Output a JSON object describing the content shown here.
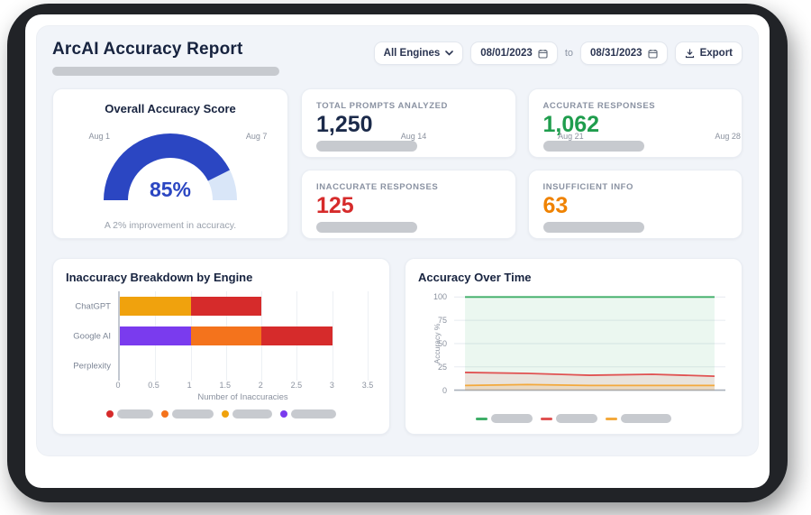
{
  "header": {
    "title": "ArcAI Accuracy Report",
    "engine_filter": "All Engines",
    "date_from": "08/01/2023",
    "to_label": "to",
    "date_to": "08/31/2023",
    "export_label": "Export"
  },
  "gauge": {
    "title": "Overall Accuracy Score",
    "percent": 85,
    "value_label": "85%",
    "caption": "A 2% improvement in accuracy.",
    "color": "#2b46c2",
    "track_color": "#d9e6f8"
  },
  "stats": [
    {
      "label": "TOTAL PROMPTS ANALYZED",
      "value": "1,250",
      "color": "#1b2a4a"
    },
    {
      "label": "ACCURATE RESPONSES",
      "value": "1,062",
      "color": "#1f9d4d"
    },
    {
      "label": "INACCURATE RESPONSES",
      "value": "125",
      "color": "#d62b2b"
    },
    {
      "label": "INSUFFICIENT INFO",
      "value": "63",
      "color": "#ef8200"
    }
  ],
  "chart_data": [
    {
      "type": "bar",
      "orientation": "horizontal",
      "title": "Inaccuracy Breakdown by Engine",
      "xlabel": "Number of Inaccuracies",
      "categories": [
        "ChatGPT",
        "Google AI",
        "Perplexity"
      ],
      "xlim": [
        0,
        3.5
      ],
      "xticks": [
        0,
        0.5,
        1,
        1.5,
        2,
        2.5,
        3,
        3.5
      ],
      "grid": true,
      "series": [
        {
          "name": "purple",
          "color": "#7a3bee",
          "values": [
            0,
            1,
            0
          ]
        },
        {
          "name": "orange",
          "color": "#f4731c",
          "values": [
            0,
            1,
            0
          ]
        },
        {
          "name": "amber",
          "color": "#f0a20d",
          "values": [
            1,
            0,
            0
          ]
        },
        {
          "name": "red",
          "color": "#d62b2b",
          "values": [
            1,
            1,
            0
          ]
        }
      ],
      "legend": {
        "position": "bottom",
        "labels_redacted": true,
        "items": [
          {
            "color": "#d62b2b",
            "pill_w": 40
          },
          {
            "color": "#f4731c",
            "pill_w": 46
          },
          {
            "color": "#f0a20d",
            "pill_w": 44
          },
          {
            "color": "#7a3bee",
            "pill_w": 50
          }
        ]
      }
    },
    {
      "type": "line",
      "title": "Accuracy Over Time",
      "ylabel": "Accuracy %",
      "x": [
        "Aug 1",
        "Aug 7",
        "Aug 14",
        "Aug 21",
        "Aug 28"
      ],
      "ylim": [
        0,
        100
      ],
      "yticks": [
        0,
        25,
        50,
        75,
        100
      ],
      "grid": true,
      "series": [
        {
          "name": "green",
          "color": "#3fae68",
          "fill": "rgba(63,174,104,0.10)",
          "values": [
            100,
            100,
            100,
            100,
            100
          ]
        },
        {
          "name": "red",
          "color": "#e05252",
          "fill": "rgba(224,82,82,0.12)",
          "values": [
            19,
            18,
            16,
            17,
            15
          ]
        },
        {
          "name": "amber",
          "color": "#f3a93c",
          "fill": "rgba(243,169,60,0.15)",
          "values": [
            5,
            6,
            5,
            5,
            5
          ]
        }
      ],
      "legend": {
        "position": "bottom",
        "labels_redacted": true,
        "items": [
          {
            "color": "#3fae68",
            "pill_w": 46
          },
          {
            "color": "#e05252",
            "pill_w": 46
          },
          {
            "color": "#f3a93c",
            "pill_w": 56
          }
        ]
      }
    }
  ]
}
